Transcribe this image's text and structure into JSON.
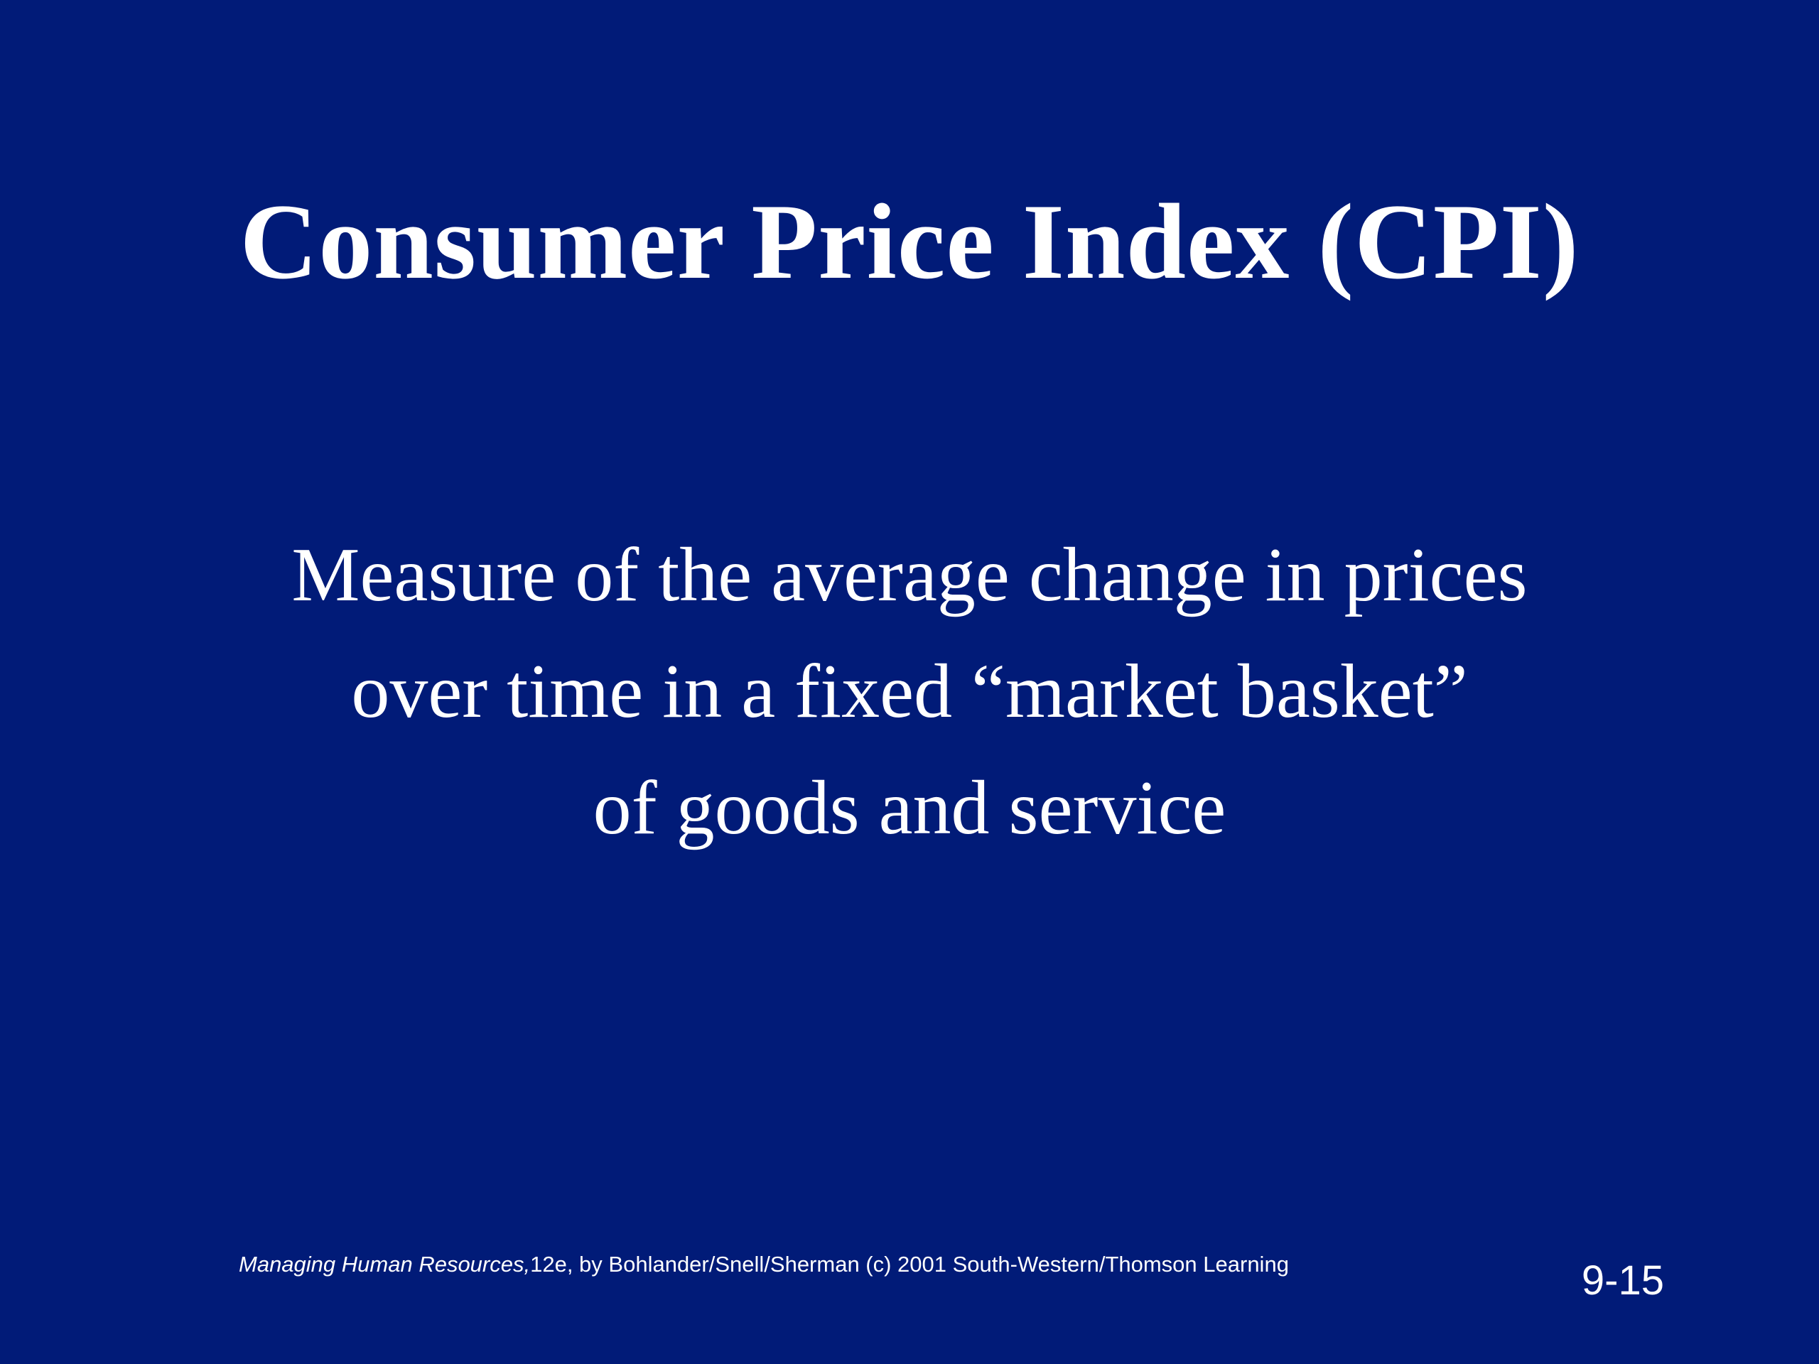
{
  "colors": {
    "background": "#011b78",
    "text": "#ffffff"
  },
  "slide": {
    "title": "Consumer Price Index (CPI)",
    "body_lines": [
      "Measure of the average change in prices",
      "over time in a fixed “market basket”",
      "of goods and service"
    ],
    "footer": {
      "book_title": "Managing Human Resources,",
      "credit": "12e, by Bohlander/Snell/Sherman (c) 2001 South-Western/Thomson Learning"
    },
    "slide_number": "9-15"
  }
}
